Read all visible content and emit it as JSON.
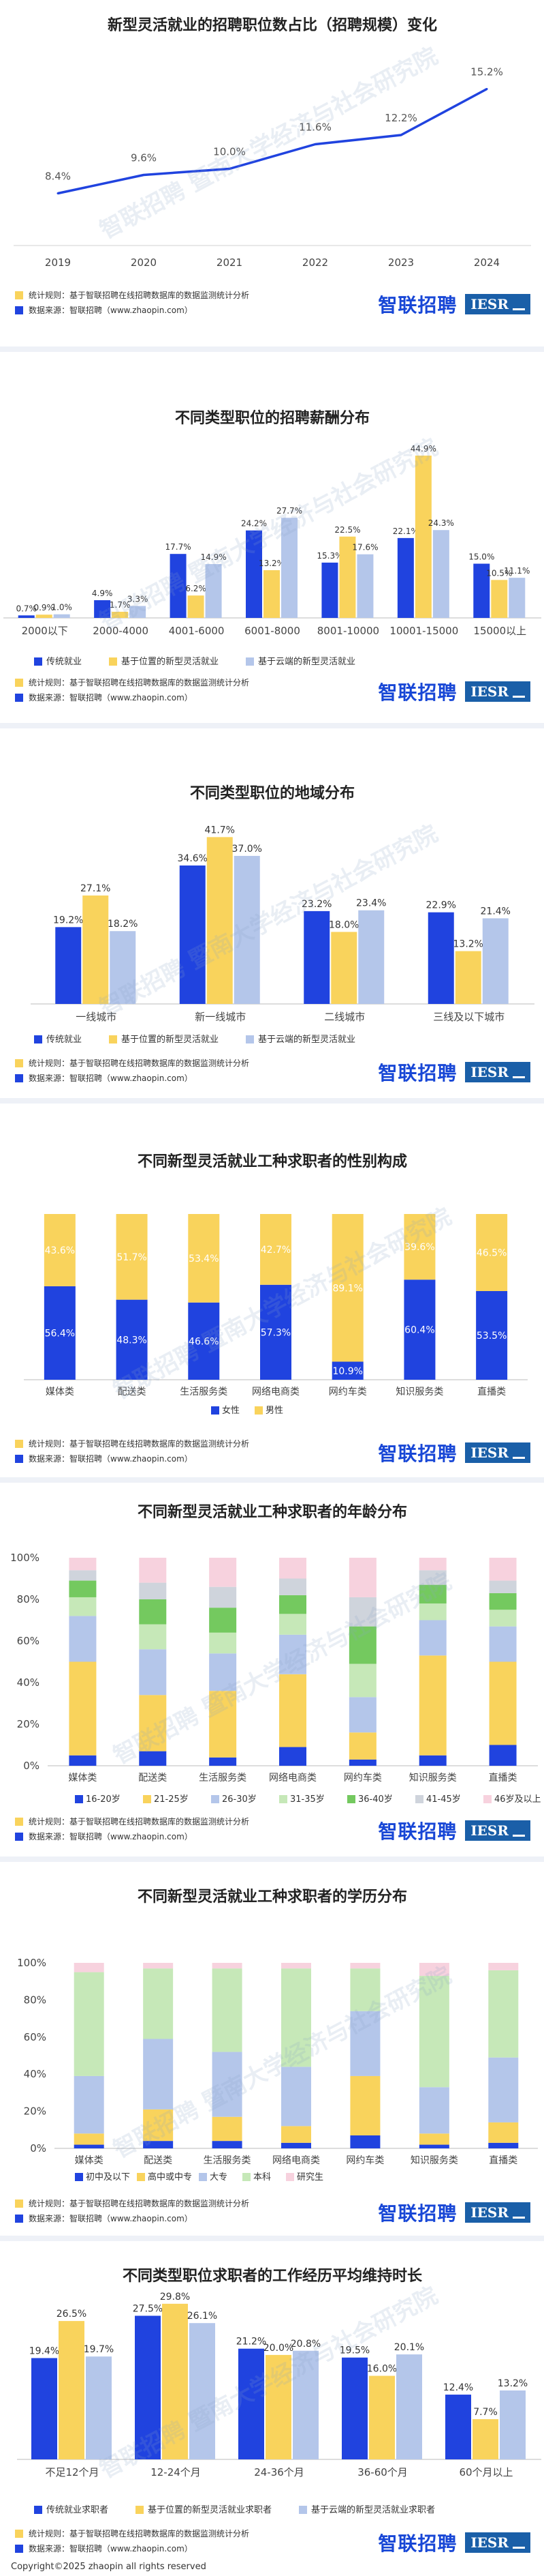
{
  "footer": {
    "stat_rule_short": "统计规则：基于智联招聘在线招聘数据库的数据监测统计分析",
    "stat_rule_long": "统计规则：基于智联招聘在线招聘数据库的数据监测统计分析",
    "data_source": "数据来源：智联招聘（www.zhaopin.com）",
    "data_source_alt": "数据来源：智联招聘（www.zhaopin.com）",
    "brand_name": "智联招聘",
    "iesr": "IESR"
  },
  "watermark": "智联招聘 暨南大学经济与社会研究院",
  "copyright": "Copyright©2025 zhaopin all rights reserved",
  "colors": {
    "blue": "#2043df",
    "yellow": "#f9d35c",
    "lightblue": "#b4c6ea",
    "green": "#c6e8b8",
    "pink": "#f7d2de",
    "darkgreen": "#74c95f",
    "gray": "#cfd4dc"
  },
  "chart_data": [
    {
      "id": "line",
      "type": "line",
      "title": "新型灵活就业的招聘职位数占比（招聘规模）变化",
      "categories": [
        "2019",
        "2020",
        "2021",
        "2022",
        "2023",
        "2024"
      ],
      "values": [
        8.4,
        9.6,
        10.0,
        11.6,
        12.2,
        15.2
      ],
      "labels": [
        "8.4%",
        "9.6%",
        "10.0%",
        "11.6%",
        "12.2%",
        "15.2%"
      ],
      "ylim": [
        5,
        17
      ]
    },
    {
      "id": "salary",
      "type": "bar",
      "title": "不同类型职位的招聘薪酬分布",
      "categories": [
        "2000以下",
        "2000-4000",
        "4001-6000",
        "6001-8000",
        "8001-10000",
        "10001-15000",
        "15000以上"
      ],
      "series": [
        {
          "name": "传统就业",
          "values": [
            0.7,
            4.9,
            17.7,
            24.2,
            15.3,
            22.1,
            15.0
          ],
          "labels": [
            "0.7%",
            "4.9%",
            "17.7%",
            "24.2%",
            "15.3%",
            "22.1%",
            "15.0%"
          ]
        },
        {
          "name": "基于位置的新型灵活就业",
          "values": [
            0.9,
            1.7,
            6.2,
            13.2,
            22.5,
            44.9,
            10.5
          ],
          "labels": [
            "0.9%",
            "1.7%",
            "6.2%",
            "13.2%",
            "22.5%",
            "44.9%",
            "10.5%"
          ]
        },
        {
          "name": "基于云端的新型灵活就业",
          "values": [
            1.0,
            3.3,
            14.9,
            27.7,
            17.6,
            24.3,
            11.1
          ],
          "labels": [
            "1.0%",
            "3.3%",
            "14.9%",
            "27.7%",
            "17.6%",
            "24.3%",
            "11.1%"
          ]
        }
      ],
      "ylim": [
        0,
        50
      ]
    },
    {
      "id": "region",
      "type": "bar",
      "title": "不同类型职位的地域分布",
      "categories": [
        "一线城市",
        "新一线城市",
        "二线城市",
        "三线及以下城市"
      ],
      "series": [
        {
          "name": "传统就业",
          "values": [
            19.2,
            34.6,
            23.2,
            22.9
          ],
          "labels": [
            "19.2%",
            "34.6%",
            "23.2%",
            "22.9%"
          ]
        },
        {
          "name": "基于位置的新型灵活就业",
          "values": [
            27.1,
            41.7,
            18.0,
            13.2
          ],
          "labels": [
            "27.1%",
            "41.7%",
            "18.0%",
            "13.2%"
          ]
        },
        {
          "name": "基于云端的新型灵活就业",
          "values": [
            18.2,
            37.0,
            23.4,
            21.4
          ],
          "labels": [
            "18.2%",
            "37.0%",
            "23.4%",
            "21.4%"
          ]
        }
      ],
      "ylim": [
        0,
        45
      ]
    },
    {
      "id": "gender",
      "type": "bar",
      "stacked": true,
      "title": "不同新型灵活就业工种求职者的性别构成",
      "categories": [
        "媒体类",
        "配送类",
        "生活服务类",
        "网络电商类",
        "网约车类",
        "知识服务类",
        "直播类"
      ],
      "series": [
        {
          "name": "女性",
          "values": [
            56.4,
            48.3,
            46.6,
            57.3,
            10.9,
            60.4,
            53.5
          ],
          "labels": [
            "56.4%",
            "48.3%",
            "46.6%",
            "57.3%",
            "10.9%",
            "60.4%",
            "53.5%"
          ]
        },
        {
          "name": "男性",
          "values": [
            43.6,
            51.7,
            53.4,
            42.7,
            89.1,
            39.6,
            46.5
          ],
          "labels": [
            "43.6%",
            "51.7%",
            "53.4%",
            "42.7%",
            "89.1%",
            "39.6%",
            "46.5%"
          ]
        }
      ],
      "ylim": [
        0,
        100
      ]
    },
    {
      "id": "age",
      "type": "bar",
      "stacked": true,
      "title": "不同新型灵活就业工种求职者的年龄分布",
      "categories": [
        "媒体类",
        "配送类",
        "生活服务类",
        "网络电商类",
        "网约车类",
        "知识服务类",
        "直播类"
      ],
      "yticks": [
        "0%",
        "20%",
        "40%",
        "60%",
        "80%",
        "100%"
      ],
      "series": [
        {
          "name": "16-20岁",
          "values": [
            5,
            7,
            4,
            9,
            3,
            5,
            10
          ]
        },
        {
          "name": "21-25岁",
          "values": [
            45,
            27,
            32,
            35,
            13,
            48,
            40
          ]
        },
        {
          "name": "26-30岁",
          "values": [
            22,
            22,
            18,
            19,
            17,
            17,
            17
          ]
        },
        {
          "name": "31-35岁",
          "values": [
            9,
            12,
            10,
            10,
            16,
            8,
            8
          ]
        },
        {
          "name": "36-40岁",
          "values": [
            8,
            12,
            12,
            9,
            18,
            9,
            8
          ]
        },
        {
          "name": "41-45岁",
          "values": [
            5,
            8,
            10,
            8,
            14,
            7,
            6
          ]
        },
        {
          "name": "46岁及以上",
          "values": [
            6,
            12,
            14,
            10,
            19,
            6,
            11
          ]
        }
      ],
      "ylim": [
        0,
        100
      ]
    },
    {
      "id": "edu",
      "type": "bar",
      "stacked": true,
      "title": "不同新型灵活就业工种求职者的学历分布",
      "categories": [
        "媒体类",
        "配送类",
        "生活服务类",
        "网络电商类",
        "网约车类",
        "知识服务类",
        "直播类"
      ],
      "yticks": [
        "0%",
        "20%",
        "40%",
        "60%",
        "80%",
        "100%"
      ],
      "series": [
        {
          "name": "初中及以下",
          "values": [
            2,
            4,
            4,
            3,
            7,
            2,
            3
          ]
        },
        {
          "name": "高中或中专",
          "values": [
            6,
            17,
            13,
            9,
            32,
            6,
            11
          ]
        },
        {
          "name": "大专",
          "values": [
            31,
            38,
            35,
            32,
            35,
            25,
            35
          ]
        },
        {
          "name": "本科",
          "values": [
            56,
            38,
            45,
            53,
            23,
            60,
            47
          ]
        },
        {
          "name": "研究生",
          "values": [
            5,
            3,
            3,
            3,
            3,
            7,
            4
          ]
        }
      ],
      "ylim": [
        0,
        100
      ]
    },
    {
      "id": "tenure",
      "type": "bar",
      "title": "不同类型职位求职者的工作经历平均维持时长",
      "categories": [
        "不足12个月",
        "12-24个月",
        "24-36个月",
        "36-60个月",
        "60个月以上"
      ],
      "series": [
        {
          "name": "传统就业求职者",
          "values": [
            19.4,
            27.5,
            21.2,
            19.5,
            12.4
          ],
          "labels": [
            "19.4%",
            "27.5%",
            "21.2%",
            "19.5%",
            "12.4%"
          ]
        },
        {
          "name": "基于位置的新型灵活就业求职者",
          "values": [
            26.5,
            29.8,
            20.0,
            16.0,
            7.7
          ],
          "labels": [
            "26.5%",
            "29.8%",
            "20.0%",
            "16.0%",
            "7.7%"
          ]
        },
        {
          "name": "基于云端的新型灵活就业求职者",
          "values": [
            19.7,
            26.1,
            20.8,
            20.1,
            13.2
          ],
          "labels": [
            "19.7%",
            "26.1%",
            "20.8%",
            "20.1%",
            "13.2%"
          ]
        }
      ],
      "ylim": [
        0,
        32
      ]
    }
  ]
}
